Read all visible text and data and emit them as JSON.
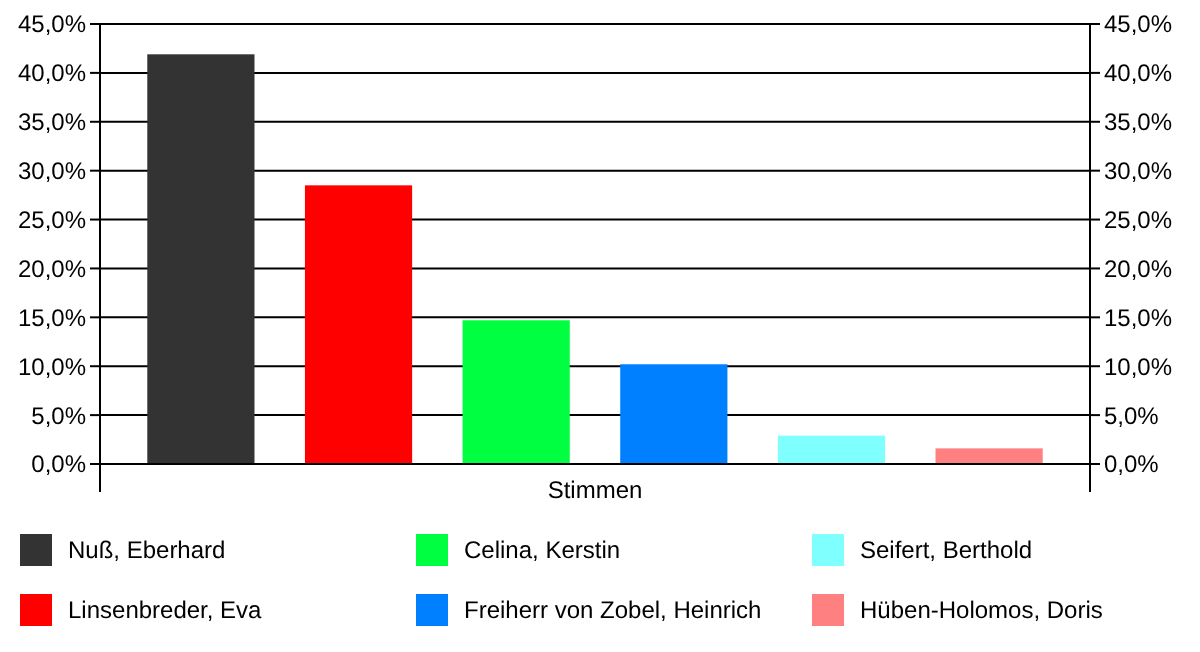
{
  "chart_data": {
    "type": "bar",
    "categories": [
      "Stimmen"
    ],
    "series": [
      {
        "name": "Nuß, Eberhard",
        "color": "#333333",
        "values": [
          41.9
        ]
      },
      {
        "name": "Linsenbreder, Eva",
        "color": "#ff0000",
        "values": [
          28.5
        ]
      },
      {
        "name": "Celina, Kerstin",
        "color": "#00ff40",
        "values": [
          14.7
        ]
      },
      {
        "name": "Freiherr von Zobel, Heinrich",
        "color": "#0080ff",
        "values": [
          10.2
        ]
      },
      {
        "name": "Seifert, Berthold",
        "color": "#80ffff",
        "values": [
          2.9
        ]
      },
      {
        "name": "Hüben-Holomos, Doris",
        "color": "#ff8080",
        "values": [
          1.6
        ]
      }
    ],
    "ylim": [
      0,
      45
    ],
    "yticks": [
      {
        "value": 0,
        "label": "0,0%"
      },
      {
        "value": 5,
        "label": "5,0%"
      },
      {
        "value": 10,
        "label": "10,0%"
      },
      {
        "value": 15,
        "label": "15,0%"
      },
      {
        "value": 20,
        "label": "20,0%"
      },
      {
        "value": 25,
        "label": "25,0%"
      },
      {
        "value": 30,
        "label": "30,0%"
      },
      {
        "value": 35,
        "label": "35,0%"
      },
      {
        "value": 40,
        "label": "40,0%"
      },
      {
        "value": 45,
        "label": "45,0%"
      }
    ],
    "grid": "y",
    "legend": "bottom"
  }
}
